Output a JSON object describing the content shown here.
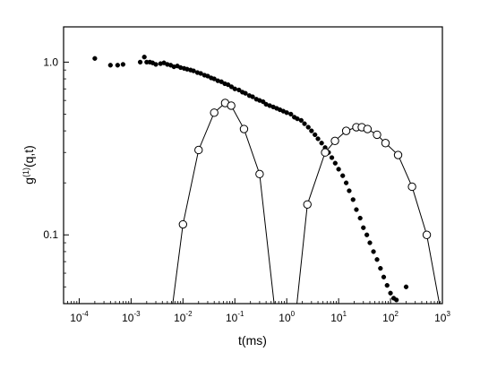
{
  "chart_data": {
    "type": "scatter",
    "xlabel": "t(ms)",
    "ylabel": "g(1)(q,t)",
    "ylabel_parts": {
      "main": "g",
      "sup": "(1)",
      "tail": "(q,t)"
    },
    "x_scale": "log",
    "y_scale": "log",
    "xlim": [
      5e-05,
      1000
    ],
    "ylim": [
      0.04,
      1.6
    ],
    "grid": false,
    "legend": "none",
    "x_ticks": [
      {
        "value": 0.0001,
        "base": "10",
        "exp": "-4"
      },
      {
        "value": 0.001,
        "base": "10",
        "exp": "-3"
      },
      {
        "value": 0.01,
        "base": "10",
        "exp": "-2"
      },
      {
        "value": 0.1,
        "base": "10",
        "exp": "-1"
      },
      {
        "value": 1,
        "base": "10",
        "exp": "0"
      },
      {
        "value": 10,
        "base": "10",
        "exp": "1"
      },
      {
        "value": 100,
        "base": "10",
        "exp": "2"
      },
      {
        "value": 1000,
        "base": "10",
        "exp": "3"
      }
    ],
    "y_ticks": [
      {
        "value": 1.0,
        "label": "1.0"
      },
      {
        "value": 0.1,
        "label": "0.1"
      }
    ],
    "colors": {
      "filled": "#000000",
      "open_fill": "#ffffff",
      "line": "#000000"
    },
    "series": [
      {
        "marker": "filled-circle",
        "connected": false,
        "points": [
          [
            0.0002,
            1.05
          ],
          [
            0.0004,
            0.96
          ],
          [
            0.00055,
            0.96
          ],
          [
            0.0007,
            0.97
          ],
          [
            0.0015,
            1.0
          ],
          [
            0.0018,
            1.07
          ],
          [
            0.002,
            1.0
          ],
          [
            0.0023,
            1.0
          ],
          [
            0.0026,
            0.99
          ],
          [
            0.003,
            0.97
          ],
          [
            0.0037,
            0.98
          ],
          [
            0.0043,
            0.99
          ],
          [
            0.005,
            0.97
          ],
          [
            0.0058,
            0.96
          ],
          [
            0.0067,
            0.94
          ],
          [
            0.0078,
            0.95
          ],
          [
            0.009,
            0.93
          ],
          [
            0.0105,
            0.92
          ],
          [
            0.012,
            0.91
          ],
          [
            0.014,
            0.9
          ],
          [
            0.016,
            0.89
          ],
          [
            0.019,
            0.87
          ],
          [
            0.022,
            0.86
          ],
          [
            0.026,
            0.84
          ],
          [
            0.03,
            0.83
          ],
          [
            0.035,
            0.81
          ],
          [
            0.04,
            0.8
          ],
          [
            0.047,
            0.78
          ],
          [
            0.055,
            0.77
          ],
          [
            0.064,
            0.75
          ],
          [
            0.074,
            0.74
          ],
          [
            0.086,
            0.72
          ],
          [
            0.1,
            0.7
          ],
          [
            0.12,
            0.69
          ],
          [
            0.14,
            0.67
          ],
          [
            0.16,
            0.66
          ],
          [
            0.19,
            0.64
          ],
          [
            0.22,
            0.63
          ],
          [
            0.26,
            0.61
          ],
          [
            0.3,
            0.6
          ],
          [
            0.35,
            0.59
          ],
          [
            0.4,
            0.57
          ],
          [
            0.47,
            0.56
          ],
          [
            0.55,
            0.55
          ],
          [
            0.64,
            0.54
          ],
          [
            0.74,
            0.53
          ],
          [
            0.86,
            0.52
          ],
          [
            1.0,
            0.51
          ],
          [
            1.2,
            0.5
          ],
          [
            1.4,
            0.48
          ],
          [
            1.6,
            0.47
          ],
          [
            1.9,
            0.46
          ],
          [
            2.2,
            0.44
          ],
          [
            2.6,
            0.42
          ],
          [
            3.0,
            0.4
          ],
          [
            3.5,
            0.38
          ],
          [
            4.0,
            0.36
          ],
          [
            4.7,
            0.34
          ],
          [
            5.5,
            0.32
          ],
          [
            6.4,
            0.3
          ],
          [
            7.4,
            0.28
          ],
          [
            8.6,
            0.26
          ],
          [
            10,
            0.24
          ],
          [
            12,
            0.22
          ],
          [
            14,
            0.2
          ],
          [
            16,
            0.18
          ],
          [
            19,
            0.16
          ],
          [
            22,
            0.14
          ],
          [
            26,
            0.125
          ],
          [
            30,
            0.11
          ],
          [
            35,
            0.1
          ],
          [
            40,
            0.09
          ],
          [
            47,
            0.08
          ],
          [
            55,
            0.072
          ],
          [
            64,
            0.064
          ],
          [
            74,
            0.057
          ],
          [
            86,
            0.051
          ],
          [
            100,
            0.046
          ],
          [
            115,
            0.043
          ],
          [
            130,
            0.042
          ],
          [
            200,
            0.05
          ]
        ]
      },
      {
        "marker": "open-circle",
        "connected": true,
        "points": [
          [
            0.006,
            0.035
          ],
          [
            0.01,
            0.115
          ],
          [
            0.02,
            0.31
          ],
          [
            0.04,
            0.51
          ],
          [
            0.065,
            0.58
          ],
          [
            0.085,
            0.56
          ],
          [
            0.15,
            0.41
          ],
          [
            0.3,
            0.225
          ],
          [
            0.6,
            0.035
          ]
        ]
      },
      {
        "marker": "open-circle",
        "connected": true,
        "points": [
          [
            1.5,
            0.035
          ],
          [
            2.5,
            0.15
          ],
          [
            5.5,
            0.3
          ],
          [
            8.5,
            0.35
          ],
          [
            14,
            0.4
          ],
          [
            22,
            0.42
          ],
          [
            28,
            0.42
          ],
          [
            36,
            0.41
          ],
          [
            55,
            0.38
          ],
          [
            80,
            0.34
          ],
          [
            140,
            0.29
          ],
          [
            260,
            0.19
          ],
          [
            500,
            0.1
          ],
          [
            950,
            0.035
          ]
        ]
      }
    ]
  }
}
